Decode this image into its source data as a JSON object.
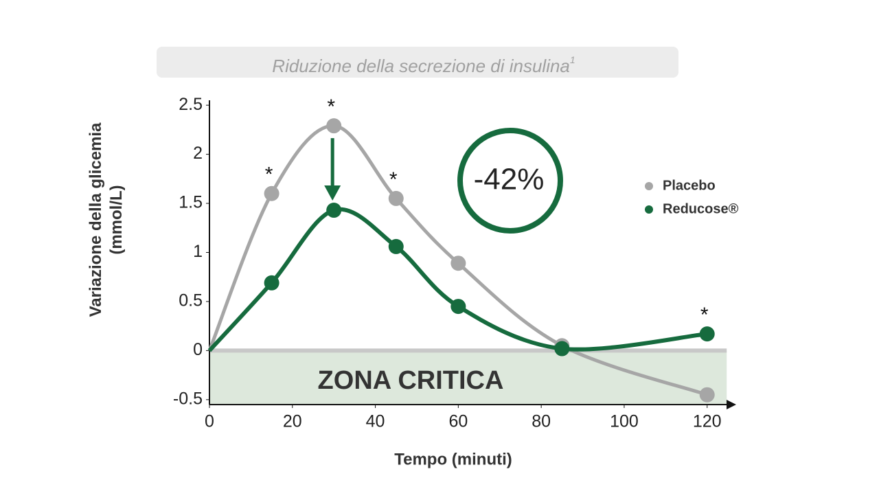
{
  "chart_data": {
    "type": "line",
    "title": "Riduzione della secrezione di insulina",
    "title_footnote": "1",
    "x_label": "Tempo (minuti)",
    "y_label": "Variazione della glicemia (mmol/L)",
    "zone_label": "ZONA CRITICA",
    "callout": "-42%",
    "xlim": [
      0,
      127
    ],
    "xticks": [
      0,
      20,
      40,
      60,
      80,
      100,
      120
    ],
    "ylim": [
      -0.55,
      2.55
    ],
    "yticks": [
      -0.5,
      0,
      0.5,
      1,
      1.5,
      2,
      2.5
    ],
    "grid": false,
    "legend": "right",
    "series": [
      {
        "name": "Placebo",
        "color": "#a6a6a6",
        "x": [
          0,
          15,
          30,
          45,
          60,
          85,
          120
        ],
        "values": [
          0,
          1.6,
          2.29,
          1.55,
          0.89,
          0.05,
          -0.45
        ]
      },
      {
        "name": "Reducose®",
        "color": "#166b3e",
        "x": [
          0,
          15,
          30,
          45,
          60,
          85,
          120
        ],
        "values": [
          0,
          0.69,
          1.43,
          1.06,
          0.45,
          0.02,
          0.17
        ]
      }
    ],
    "annotations": [
      {
        "text": "*",
        "series": 0,
        "index": 1
      },
      {
        "text": "*",
        "series": 0,
        "index": 2
      },
      {
        "text": "*",
        "series": 0,
        "index": 3
      },
      {
        "text": "*",
        "series": 1,
        "index": 6
      }
    ]
  }
}
